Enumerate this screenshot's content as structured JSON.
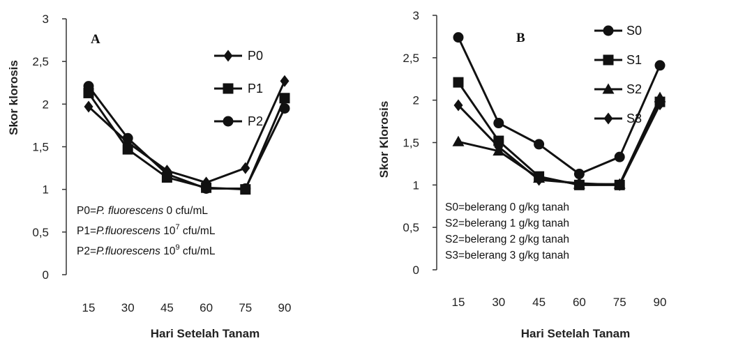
{
  "chart_data": [
    {
      "type": "line",
      "panel_label": "A",
      "xlabel": "Hari Setelah Tanam",
      "ylabel": "Skor klorosis",
      "x": [
        15,
        30,
        45,
        60,
        75,
        90
      ],
      "x_tick_labels": [
        "15",
        "30",
        "45",
        "60",
        "75",
        "90"
      ],
      "ylim": [
        0,
        3
      ],
      "y_tick_labels": [
        "0",
        "0,5",
        "1",
        "1,5",
        "2",
        "2,5",
        "3"
      ],
      "grid": false,
      "legend_position": "top-center",
      "series": [
        {
          "name": "P0",
          "marker": "diamond",
          "values": [
            1.97,
            1.55,
            1.22,
            1.08,
            1.25,
            2.27
          ]
        },
        {
          "name": "P1",
          "marker": "square",
          "values": [
            2.13,
            1.47,
            1.14,
            1.02,
            1.0,
            2.07
          ]
        },
        {
          "name": "P2",
          "marker": "circle",
          "values": [
            2.21,
            1.6,
            1.18,
            1.01,
            1.01,
            1.95
          ]
        }
      ],
      "notes": [
        {
          "prefix": "P0=",
          "italic": "P. fluorescens",
          "mid": " 0",
          "sup": "",
          "suffix": " cfu/mL"
        },
        {
          "prefix": "P1=",
          "italic": "P.fluorescens",
          "mid": " 10",
          "sup": "7",
          "suffix": " cfu/mL"
        },
        {
          "prefix": "P2=",
          "italic": "P.fluorescens",
          "mid": " 10",
          "sup": "9",
          "suffix": " cfu/mL"
        }
      ]
    },
    {
      "type": "line",
      "panel_label": "B",
      "xlabel": "Hari Setelah Tanam",
      "ylabel": "Skor Klorosis",
      "x": [
        15,
        30,
        45,
        60,
        75,
        90
      ],
      "x_tick_labels": [
        "15",
        "30",
        "45",
        "60",
        "75",
        "90"
      ],
      "ylim": [
        0,
        3
      ],
      "y_tick_labels": [
        "0",
        "0,5",
        "1",
        "1,5",
        "2",
        "2,5",
        "3"
      ],
      "grid": false,
      "legend_position": "top-center",
      "series": [
        {
          "name": "S0",
          "marker": "circle",
          "values": [
            2.74,
            1.73,
            1.48,
            1.13,
            1.33,
            2.41
          ]
        },
        {
          "name": "S1",
          "marker": "square",
          "values": [
            2.21,
            1.52,
            1.1,
            1.0,
            1.0,
            1.98
          ]
        },
        {
          "name": "S2",
          "marker": "triangle",
          "values": [
            1.51,
            1.4,
            1.08,
            1.01,
            1.01,
            2.03
          ]
        },
        {
          "name": "S3",
          "marker": "diamond",
          "values": [
            1.94,
            1.45,
            1.06,
            1.02,
            1.0,
            1.95
          ]
        }
      ],
      "notes": [
        {
          "prefix": "S0=belerang 0 g/kg tanah",
          "italic": "",
          "mid": "",
          "sup": "",
          "suffix": ""
        },
        {
          "prefix": "S2=belerang 1 g/kg tanah",
          "italic": "",
          "mid": "",
          "sup": "",
          "suffix": ""
        },
        {
          "prefix": "S2=belerang 2 g/kg tanah",
          "italic": "",
          "mid": "",
          "sup": "",
          "suffix": ""
        },
        {
          "prefix": "S3=belerang 3 g/kg tanah",
          "italic": "",
          "mid": "",
          "sup": "",
          "suffix": ""
        }
      ]
    }
  ]
}
